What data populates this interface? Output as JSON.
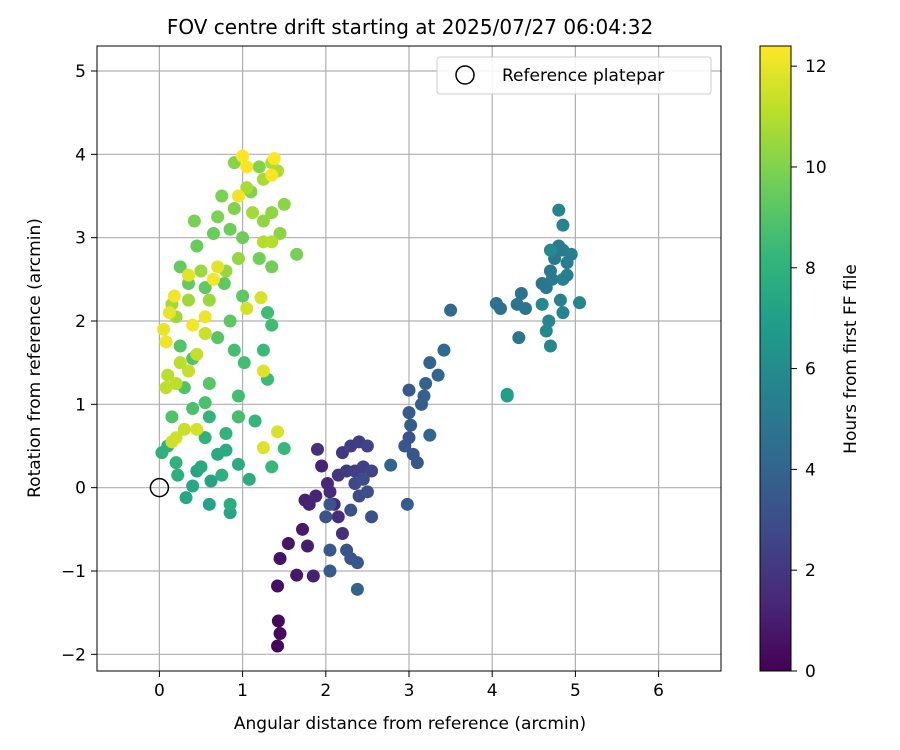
{
  "chart_data": {
    "type": "scatter",
    "title": "FOV centre drift starting at 2025/07/27 06:04:32",
    "xlabel": "Angular distance from reference (arcmin)",
    "ylabel": "Rotation from reference (arcmin)",
    "xlim": [
      -0.75,
      6.75
    ],
    "ylim": [
      -2.2,
      5.3
    ],
    "xticks": [
      0,
      1,
      2,
      3,
      4,
      5,
      6
    ],
    "yticks": [
      -2,
      -1,
      0,
      1,
      2,
      3,
      4,
      5
    ],
    "grid": true,
    "legend": {
      "placement": "top-right",
      "entries": [
        {
          "label": "Reference platepar",
          "marker": "open-circle"
        }
      ]
    },
    "reference_point": {
      "x": 0,
      "y": 0
    },
    "colorbar": {
      "label": "Hours from first FF file",
      "range": [
        0,
        12.4
      ],
      "ticks": [
        0,
        2,
        4,
        6,
        8,
        10,
        12
      ],
      "colormap": "viridis",
      "colors": [
        "#440154",
        "#482878",
        "#3e4989",
        "#31688e",
        "#26828e",
        "#1f9e89",
        "#35b779",
        "#6ece58",
        "#b5de2b",
        "#fde725"
      ]
    },
    "points": [
      {
        "x": 1.42,
        "y": -1.9,
        "h": 0.2
      },
      {
        "x": 1.43,
        "y": -1.6,
        "h": 0.3
      },
      {
        "x": 1.45,
        "y": -1.75,
        "h": 0.4
      },
      {
        "x": 1.42,
        "y": -1.18,
        "h": 0.5
      },
      {
        "x": 1.45,
        "y": -0.85,
        "h": 0.6
      },
      {
        "x": 1.55,
        "y": -0.67,
        "h": 0.7
      },
      {
        "x": 1.65,
        "y": -1.05,
        "h": 0.8
      },
      {
        "x": 1.72,
        "y": -0.5,
        "h": 0.9
      },
      {
        "x": 1.78,
        "y": -0.7,
        "h": 1.0
      },
      {
        "x": 1.85,
        "y": -1.06,
        "h": 1.1
      },
      {
        "x": 1.75,
        "y": -0.15,
        "h": 1.1
      },
      {
        "x": 1.8,
        "y": -0.2,
        "h": 1.2
      },
      {
        "x": 1.95,
        "y": 0.26,
        "h": 1.2
      },
      {
        "x": 1.88,
        "y": -0.1,
        "h": 1.3
      },
      {
        "x": 2.02,
        "y": 0.05,
        "h": 1.4
      },
      {
        "x": 2.05,
        "y": -0.05,
        "h": 1.5
      },
      {
        "x": 2.1,
        "y": -0.2,
        "h": 1.5
      },
      {
        "x": 2.15,
        "y": -0.35,
        "h": 1.6
      },
      {
        "x": 2.2,
        "y": -0.55,
        "h": 1.7
      },
      {
        "x": 1.9,
        "y": 0.46,
        "h": 1.8
      },
      {
        "x": 2.15,
        "y": 0.15,
        "h": 1.9
      },
      {
        "x": 2.2,
        "y": 0.42,
        "h": 2.0
      },
      {
        "x": 2.25,
        "y": 0.2,
        "h": 2.1
      },
      {
        "x": 2.3,
        "y": 0.5,
        "h": 2.2
      },
      {
        "x": 2.35,
        "y": 0.2,
        "h": 2.3
      },
      {
        "x": 2.4,
        "y": 0.55,
        "h": 2.3
      },
      {
        "x": 2.45,
        "y": 0.25,
        "h": 2.4
      },
      {
        "x": 2.5,
        "y": 0.5,
        "h": 2.5
      },
      {
        "x": 2.55,
        "y": 0.2,
        "h": 2.6
      },
      {
        "x": 2.35,
        "y": 0.05,
        "h": 2.7
      },
      {
        "x": 2.4,
        "y": -0.1,
        "h": 2.8
      },
      {
        "x": 2.45,
        "y": 0.1,
        "h": 2.9
      },
      {
        "x": 2.5,
        "y": -0.05,
        "h": 3.0
      },
      {
        "x": 2.55,
        "y": -0.35,
        "h": 3.1
      },
      {
        "x": 2.3,
        "y": -0.27,
        "h": 3.1
      },
      {
        "x": 2.25,
        "y": -0.75,
        "h": 3.2
      },
      {
        "x": 2.3,
        "y": -0.85,
        "h": 3.3
      },
      {
        "x": 2.38,
        "y": -0.9,
        "h": 3.4
      },
      {
        "x": 2.05,
        "y": -0.75,
        "h": 3.4
      },
      {
        "x": 2.0,
        "y": -0.35,
        "h": 3.2
      },
      {
        "x": 2.05,
        "y": -0.2,
        "h": 3.3
      },
      {
        "x": 2.05,
        "y": -1.0,
        "h": 3.6
      },
      {
        "x": 2.38,
        "y": -1.22,
        "h": 3.9
      },
      {
        "x": 2.98,
        "y": -0.2,
        "h": 3.6
      },
      {
        "x": 2.95,
        "y": 0.5,
        "h": 3.4
      },
      {
        "x": 3.0,
        "y": 0.6,
        "h": 3.2
      },
      {
        "x": 3.05,
        "y": 0.4,
        "h": 3.3
      },
      {
        "x": 3.1,
        "y": 0.3,
        "h": 3.4
      },
      {
        "x": 3.0,
        "y": 0.9,
        "h": 3.5
      },
      {
        "x": 3.0,
        "y": 1.17,
        "h": 3.5
      },
      {
        "x": 3.02,
        "y": 0.75,
        "h": 3.6
      },
      {
        "x": 3.15,
        "y": 1.0,
        "h": 3.7
      },
      {
        "x": 3.18,
        "y": 1.1,
        "h": 3.8
      },
      {
        "x": 3.2,
        "y": 1.25,
        "h": 3.9
      },
      {
        "x": 3.25,
        "y": 1.5,
        "h": 4.0
      },
      {
        "x": 3.35,
        "y": 1.35,
        "h": 4.1
      },
      {
        "x": 3.42,
        "y": 1.65,
        "h": 4.2
      },
      {
        "x": 3.25,
        "y": 0.63,
        "h": 4.1
      },
      {
        "x": 2.78,
        "y": 0.27,
        "h": 4.0
      },
      {
        "x": 3.5,
        "y": 2.13,
        "h": 4.3
      },
      {
        "x": 4.05,
        "y": 2.21,
        "h": 4.6
      },
      {
        "x": 4.1,
        "y": 2.15,
        "h": 4.6
      },
      {
        "x": 4.3,
        "y": 2.2,
        "h": 4.7
      },
      {
        "x": 4.35,
        "y": 2.33,
        "h": 4.7
      },
      {
        "x": 4.4,
        "y": 2.15,
        "h": 4.8
      },
      {
        "x": 4.32,
        "y": 1.8,
        "h": 4.8
      },
      {
        "x": 4.6,
        "y": 2.45,
        "h": 4.9
      },
      {
        "x": 4.65,
        "y": 2.4,
        "h": 5.0
      },
      {
        "x": 4.7,
        "y": 2.6,
        "h": 5.0
      },
      {
        "x": 4.75,
        "y": 2.75,
        "h": 5.1
      },
      {
        "x": 4.72,
        "y": 2.5,
        "h": 5.1
      },
      {
        "x": 4.8,
        "y": 2.9,
        "h": 5.2
      },
      {
        "x": 4.85,
        "y": 2.85,
        "h": 5.2
      },
      {
        "x": 4.9,
        "y": 2.7,
        "h": 5.3
      },
      {
        "x": 4.95,
        "y": 2.8,
        "h": 5.3
      },
      {
        "x": 4.85,
        "y": 2.5,
        "h": 5.4
      },
      {
        "x": 4.9,
        "y": 2.55,
        "h": 5.4
      },
      {
        "x": 4.82,
        "y": 2.25,
        "h": 5.5
      },
      {
        "x": 4.85,
        "y": 2.1,
        "h": 5.5
      },
      {
        "x": 4.8,
        "y": 3.33,
        "h": 5.6
      },
      {
        "x": 4.85,
        "y": 3.15,
        "h": 5.6
      },
      {
        "x": 5.05,
        "y": 2.22,
        "h": 5.7
      },
      {
        "x": 4.68,
        "y": 2.0,
        "h": 5.7
      },
      {
        "x": 4.65,
        "y": 1.88,
        "h": 5.8
      },
      {
        "x": 4.7,
        "y": 1.7,
        "h": 5.8
      },
      {
        "x": 4.6,
        "y": 2.2,
        "h": 5.9
      },
      {
        "x": 4.7,
        "y": 2.85,
        "h": 5.9
      },
      {
        "x": 4.18,
        "y": 1.12,
        "h": 6.8
      },
      {
        "x": 4.18,
        "y": 1.1,
        "h": 7.0
      },
      {
        "x": 0.6,
        "y": -0.2,
        "h": 7.2
      },
      {
        "x": 0.85,
        "y": -0.3,
        "h": 7.3
      },
      {
        "x": 0.62,
        "y": 0.08,
        "h": 7.2
      },
      {
        "x": 0.45,
        "y": 0.2,
        "h": 7.3
      },
      {
        "x": 0.32,
        "y": -0.12,
        "h": 7.4
      },
      {
        "x": 0.4,
        "y": 0.02,
        "h": 7.4
      },
      {
        "x": 0.5,
        "y": 0.25,
        "h": 7.5
      },
      {
        "x": 0.7,
        "y": 0.4,
        "h": 7.5
      },
      {
        "x": 0.8,
        "y": 0.45,
        "h": 7.6
      },
      {
        "x": 0.95,
        "y": 0.28,
        "h": 7.6
      },
      {
        "x": 0.85,
        "y": -0.2,
        "h": 7.7
      },
      {
        "x": 1.08,
        "y": 0.1,
        "h": 7.7
      },
      {
        "x": 0.75,
        "y": 0.15,
        "h": 7.8
      },
      {
        "x": 0.22,
        "y": 0.15,
        "h": 7.8
      },
      {
        "x": 0.03,
        "y": 0.42,
        "h": 7.9
      },
      {
        "x": 0.1,
        "y": 0.5,
        "h": 7.9
      },
      {
        "x": 0.2,
        "y": 0.3,
        "h": 8.0
      },
      {
        "x": 0.55,
        "y": 0.6,
        "h": 8.0
      },
      {
        "x": 0.6,
        "y": 0.85,
        "h": 8.1
      },
      {
        "x": 0.8,
        "y": 0.65,
        "h": 8.1
      },
      {
        "x": 0.95,
        "y": 0.85,
        "h": 8.2
      },
      {
        "x": 1.15,
        "y": 0.8,
        "h": 8.2
      },
      {
        "x": 1.35,
        "y": 0.25,
        "h": 8.3
      },
      {
        "x": 1.5,
        "y": 0.47,
        "h": 8.3
      },
      {
        "x": 1.3,
        "y": 1.3,
        "h": 8.4
      },
      {
        "x": 1.25,
        "y": 1.65,
        "h": 8.4
      },
      {
        "x": 1.35,
        "y": 1.95,
        "h": 8.5
      },
      {
        "x": 1.3,
        "y": 2.1,
        "h": 8.5
      },
      {
        "x": 1.02,
        "y": 1.5,
        "h": 8.6
      },
      {
        "x": 0.95,
        "y": 1.1,
        "h": 8.6
      },
      {
        "x": 0.95,
        "y": 0.85,
        "h": 8.7
      },
      {
        "x": 0.9,
        "y": 1.65,
        "h": 8.7
      },
      {
        "x": 0.55,
        "y": 1.02,
        "h": 8.8
      },
      {
        "x": 0.4,
        "y": 0.95,
        "h": 8.8
      },
      {
        "x": 0.3,
        "y": 1.2,
        "h": 8.9
      },
      {
        "x": 0.15,
        "y": 0.85,
        "h": 8.9
      },
      {
        "x": 0.25,
        "y": 1.7,
        "h": 9.0
      },
      {
        "x": 0.4,
        "y": 1.55,
        "h": 9.0
      },
      {
        "x": 0.6,
        "y": 1.25,
        "h": 9.1
      },
      {
        "x": 0.7,
        "y": 1.8,
        "h": 9.1
      },
      {
        "x": 0.85,
        "y": 2.0,
        "h": 9.2
      },
      {
        "x": 1.0,
        "y": 2.3,
        "h": 9.2
      },
      {
        "x": 0.78,
        "y": 2.45,
        "h": 9.3
      },
      {
        "x": 0.55,
        "y": 2.4,
        "h": 9.3
      },
      {
        "x": 0.35,
        "y": 2.45,
        "h": 9.4
      },
      {
        "x": 0.25,
        "y": 2.65,
        "h": 9.4
      },
      {
        "x": 0.45,
        "y": 2.9,
        "h": 9.5
      },
      {
        "x": 0.65,
        "y": 3.05,
        "h": 9.5
      },
      {
        "x": 0.85,
        "y": 3.1,
        "h": 9.6
      },
      {
        "x": 1.0,
        "y": 3.0,
        "h": 9.6
      },
      {
        "x": 1.2,
        "y": 2.75,
        "h": 9.7
      },
      {
        "x": 1.35,
        "y": 2.65,
        "h": 9.7
      },
      {
        "x": 1.65,
        "y": 2.8,
        "h": 9.8
      },
      {
        "x": 0.42,
        "y": 3.2,
        "h": 9.8
      },
      {
        "x": 0.7,
        "y": 3.25,
        "h": 9.9
      },
      {
        "x": 0.75,
        "y": 3.5,
        "h": 9.9
      },
      {
        "x": 0.9,
        "y": 3.35,
        "h": 10.0
      },
      {
        "x": 1.1,
        "y": 3.55,
        "h": 10.0
      },
      {
        "x": 1.2,
        "y": 3.85,
        "h": 10.1
      },
      {
        "x": 0.9,
        "y": 3.9,
        "h": 10.1
      },
      {
        "x": 1.5,
        "y": 3.4,
        "h": 10.2
      },
      {
        "x": 1.45,
        "y": 3.05,
        "h": 10.2
      },
      {
        "x": 1.35,
        "y": 3.3,
        "h": 10.3
      },
      {
        "x": 1.25,
        "y": 3.2,
        "h": 10.3
      },
      {
        "x": 0.95,
        "y": 2.75,
        "h": 10.4
      },
      {
        "x": 0.8,
        "y": 2.6,
        "h": 10.4
      },
      {
        "x": 0.6,
        "y": 2.25,
        "h": 10.5
      },
      {
        "x": 0.5,
        "y": 2.6,
        "h": 10.5
      },
      {
        "x": 0.35,
        "y": 2.25,
        "h": 10.6
      },
      {
        "x": 0.2,
        "y": 2.05,
        "h": 10.6
      },
      {
        "x": 0.15,
        "y": 2.2,
        "h": 10.7
      },
      {
        "x": 1.12,
        "y": 3.3,
        "h": 10.7
      },
      {
        "x": 1.05,
        "y": 3.6,
        "h": 10.8
      },
      {
        "x": 1.25,
        "y": 3.7,
        "h": 10.8
      },
      {
        "x": 1.35,
        "y": 3.9,
        "h": 10.9
      },
      {
        "x": 1.42,
        "y": 3.8,
        "h": 10.9
      },
      {
        "x": 1.25,
        "y": 2.95,
        "h": 11.0
      },
      {
        "x": 1.35,
        "y": 2.95,
        "h": 11.0
      },
      {
        "x": 0.25,
        "y": 1.5,
        "h": 11.1
      },
      {
        "x": 0.1,
        "y": 1.35,
        "h": 11.1
      },
      {
        "x": 0.08,
        "y": 1.2,
        "h": 11.2
      },
      {
        "x": 0.2,
        "y": 1.25,
        "h": 11.2
      },
      {
        "x": 0.35,
        "y": 1.4,
        "h": 11.3
      },
      {
        "x": 0.45,
        "y": 1.6,
        "h": 11.3
      },
      {
        "x": 0.55,
        "y": 1.85,
        "h": 11.4
      },
      {
        "x": 0.3,
        "y": 0.7,
        "h": 11.4
      },
      {
        "x": 0.2,
        "y": 0.6,
        "h": 11.5
      },
      {
        "x": 0.15,
        "y": 0.55,
        "h": 11.5
      },
      {
        "x": 0.45,
        "y": 0.7,
        "h": 11.6
      },
      {
        "x": 1.05,
        "y": 2.15,
        "h": 11.6
      },
      {
        "x": 1.22,
        "y": 2.28,
        "h": 11.7
      },
      {
        "x": 1.42,
        "y": 0.67,
        "h": 11.7
      },
      {
        "x": 1.25,
        "y": 0.48,
        "h": 11.8
      },
      {
        "x": 1.25,
        "y": 1.4,
        "h": 11.8
      },
      {
        "x": 0.35,
        "y": 2.55,
        "h": 11.9
      },
      {
        "x": 0.7,
        "y": 2.65,
        "h": 11.9
      },
      {
        "x": 0.05,
        "y": 1.9,
        "h": 12.0
      },
      {
        "x": 0.12,
        "y": 2.1,
        "h": 12.0
      },
      {
        "x": 0.08,
        "y": 1.75,
        "h": 12.1
      },
      {
        "x": 0.55,
        "y": 2.05,
        "h": 12.1
      },
      {
        "x": 0.18,
        "y": 2.3,
        "h": 12.2
      },
      {
        "x": 0.4,
        "y": 1.95,
        "h": 12.2
      },
      {
        "x": 1.05,
        "y": 3.85,
        "h": 12.3
      },
      {
        "x": 1.35,
        "y": 3.75,
        "h": 12.3
      },
      {
        "x": 1.0,
        "y": 3.98,
        "h": 12.4
      },
      {
        "x": 1.38,
        "y": 3.95,
        "h": 12.4
      },
      {
        "x": 0.95,
        "y": 3.5,
        "h": 12.1
      },
      {
        "x": 0.65,
        "y": 2.5,
        "h": 12.2
      }
    ]
  }
}
